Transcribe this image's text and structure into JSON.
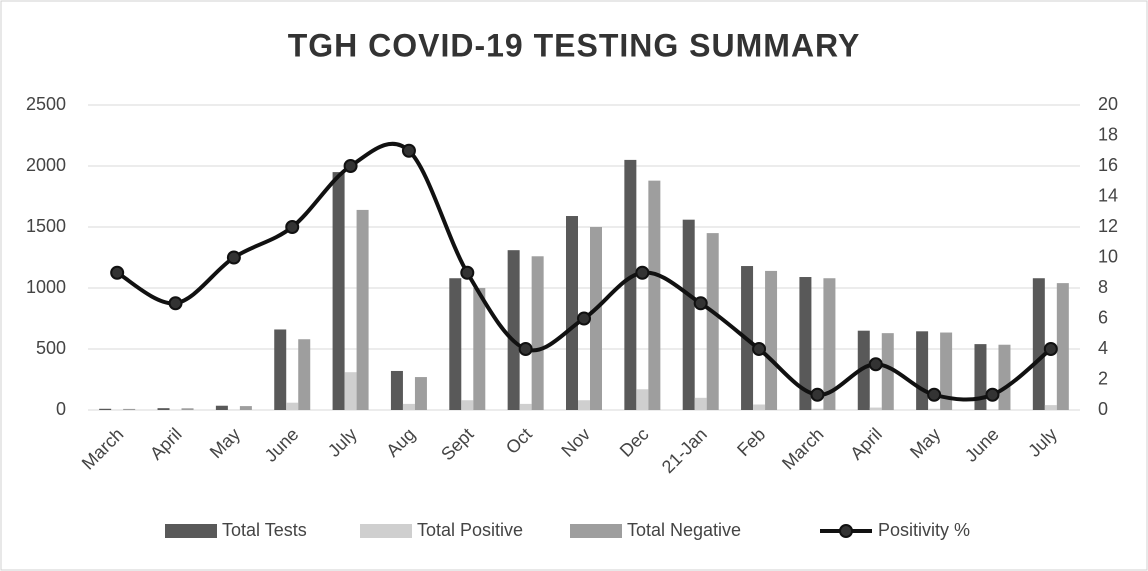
{
  "chart_data": {
    "type": "bar_line",
    "title": "TGH COVID-19 TESTING SUMMARY",
    "categories": [
      "March",
      "April",
      "May",
      "June",
      "July",
      "Aug",
      "Sept",
      "Oct",
      "Nov",
      "Dec",
      "21-Jan",
      "Feb",
      "March",
      "April",
      "May",
      "June",
      "July"
    ],
    "series": [
      {
        "name": "Total Tests",
        "type": "bar",
        "color": "#595959",
        "values": [
          10,
          15,
          35,
          660,
          1950,
          320,
          1080,
          1310,
          1590,
          2050,
          1560,
          1180,
          1090,
          650,
          645,
          540,
          1080
        ]
      },
      {
        "name": "Total Positive",
        "type": "bar",
        "color": "#cfcfcf",
        "values": [
          1,
          1,
          3,
          60,
          310,
          50,
          80,
          50,
          80,
          170,
          100,
          45,
          10,
          20,
          10,
          5,
          40
        ]
      },
      {
        "name": "Total Negative",
        "type": "bar",
        "color": "#9e9e9e",
        "values": [
          9,
          14,
          32,
          580,
          1640,
          270,
          1000,
          1260,
          1500,
          1880,
          1450,
          1140,
          1080,
          630,
          635,
          535,
          1040
        ]
      },
      {
        "name": "Positivity %",
        "type": "line",
        "axis": "y2",
        "color": "#111111",
        "values": [
          9,
          7,
          10,
          12,
          16,
          17,
          9,
          4,
          6,
          9,
          7,
          4,
          1,
          3,
          1,
          1,
          4
        ]
      }
    ],
    "ylim": [
      0,
      2500
    ],
    "yticks": [
      0,
      500,
      1000,
      1500,
      2000,
      2500
    ],
    "y2lim": [
      0,
      20
    ],
    "y2ticks": [
      0,
      2,
      4,
      6,
      8,
      10,
      12,
      14,
      16,
      18,
      20
    ],
    "grid": true,
    "legend": "bottom"
  }
}
